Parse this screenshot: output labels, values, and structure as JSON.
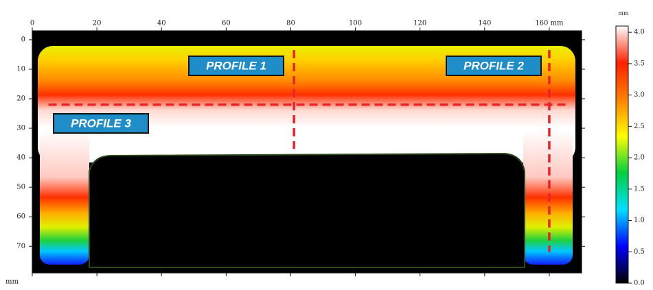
{
  "chart_data": {
    "type": "heatmap",
    "xlim": [
      0,
      170
    ],
    "xticks": [
      0,
      20,
      40,
      60,
      80,
      100,
      120,
      140,
      {
        "value": 160,
        "label": "160 mm"
      }
    ],
    "ylim": [
      -3,
      79
    ],
    "yticks": [
      0,
      10,
      20,
      30,
      40,
      50,
      60,
      70
    ],
    "y_label": "mm",
    "colorbar": {
      "unit": "mm",
      "lim": [
        0,
        4.1
      ],
      "ticks": [
        {
          "value": 0,
          "label": "0.0"
        },
        0.5,
        {
          "value": 1,
          "label": "1.0"
        },
        1.5,
        {
          "value": 2,
          "label": "2.0"
        },
        2.5,
        {
          "value": 3,
          "label": "3.0"
        },
        3.5,
        {
          "value": 4,
          "label": "4.0"
        }
      ],
      "colors": [
        "#000000",
        "#0000ff",
        "#00e0ff",
        "#00d040",
        "#ffff00",
        "#ff8000",
        "#ff2000",
        "#ffffff"
      ]
    },
    "profiles": [
      {
        "label": "PROFILE 1",
        "x": 81
      },
      {
        "label": "PROFILE 2",
        "x": 160
      },
      {
        "label": "PROFILE 3",
        "y": 22
      }
    ],
    "profile_color": "#e8232a",
    "label_color": "#1f8dc8"
  }
}
